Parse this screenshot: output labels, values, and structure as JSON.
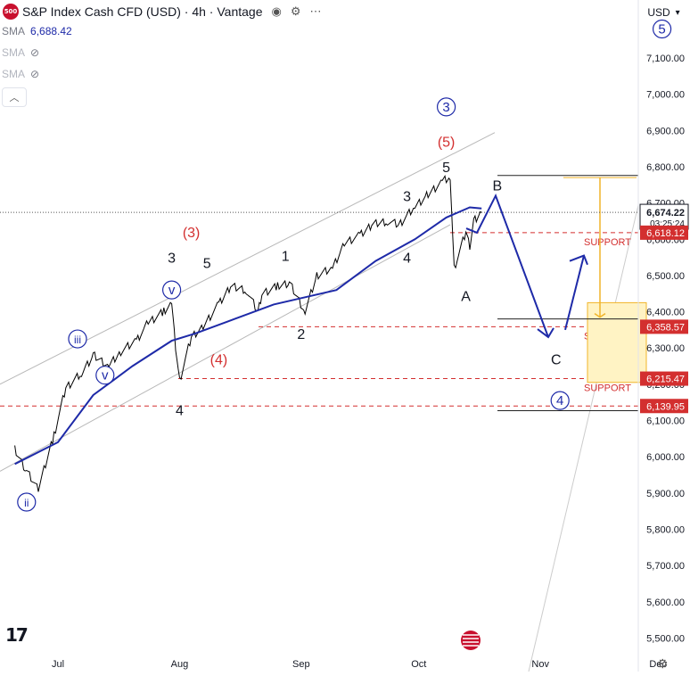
{
  "header": {
    "symbol_badge": "500",
    "title": "S&P Index Cash CFD (USD) · 4h · Vantage",
    "currency": "USD"
  },
  "indicators": [
    {
      "label": "SMA",
      "value": "6,688.42"
    },
    {
      "label": "SMA",
      "value": ""
    },
    {
      "label": "SMA",
      "value": ""
    }
  ],
  "chart_data": {
    "type": "line",
    "ylim": [
      5460,
      7240
    ],
    "y_ticks": [
      5500,
      5600,
      5700,
      5800,
      5900,
      6000,
      6100,
      6200,
      6300,
      6400,
      6500,
      6600,
      6700,
      6800,
      6900,
      7000,
      7100
    ],
    "y_tick_labels": [
      "5,500.00",
      "5,600.00",
      "5,700.00",
      "5,800.00",
      "5,900.00",
      "6,000.00",
      "6,100.00",
      "6,200.00",
      "6,300.00",
      "6,400.00",
      "6,500.00",
      "6,600.00",
      "6,700.00",
      "6,800.00",
      "6,900.00",
      "7,000.00",
      "7,100.00"
    ],
    "x_ticks": [
      "Jul",
      "Aug",
      "Sep",
      "Oct",
      "Nov",
      "Dec"
    ],
    "series": [
      {
        "color": "#000000",
        "x": [
          "2025-06-20",
          "2025-06-23",
          "2025-06-26",
          "2025-06-30",
          "2025-07-03",
          "2025-07-07",
          "2025-07-10",
          "2025-07-14",
          "2025-07-17",
          "2025-07-21",
          "2025-07-24",
          "2025-07-28",
          "2025-07-30",
          "2025-07-31",
          "2025-08-01",
          "2025-08-04",
          "2025-08-07",
          "2025-08-11",
          "2025-08-14",
          "2025-08-18",
          "2025-08-21",
          "2025-08-22",
          "2025-08-26",
          "2025-08-29",
          "2025-09-02",
          "2025-09-05",
          "2025-09-09",
          "2025-09-12",
          "2025-09-16",
          "2025-09-19",
          "2025-09-23",
          "2025-09-26",
          "2025-09-30",
          "2025-10-03",
          "2025-10-07",
          "2025-10-09",
          "2025-10-10",
          "2025-10-13",
          "2025-10-14",
          "2025-10-15",
          "2025-10-16",
          "2025-10-17"
        ],
        "y": [
          6020,
          5960,
          5910,
          6060,
          6190,
          6230,
          6280,
          6250,
          6290,
          6320,
          6370,
          6400,
          6420,
          6300,
          6210,
          6330,
          6360,
          6420,
          6470,
          6460,
          6400,
          6450,
          6470,
          6480,
          6400,
          6500,
          6520,
          6590,
          6610,
          6640,
          6650,
          6640,
          6690,
          6720,
          6760,
          6770,
          6520,
          6620,
          6580,
          6650,
          6660,
          6674
        ]
      },
      {
        "name": "SMA",
        "color": "#1e2aa8",
        "x": [
          "2025-06-20",
          "2025-07-01",
          "2025-07-10",
          "2025-07-20",
          "2025-07-30",
          "2025-08-05",
          "2025-08-15",
          "2025-08-25",
          "2025-09-02",
          "2025-09-10",
          "2025-09-20",
          "2025-09-30",
          "2025-10-08",
          "2025-10-14",
          "2025-10-17"
        ],
        "y": [
          5980,
          6040,
          6170,
          6250,
          6320,
          6340,
          6380,
          6420,
          6440,
          6460,
          6540,
          6600,
          6660,
          6688,
          6685
        ]
      }
    ],
    "price_labels": [
      {
        "value": 6674.22,
        "text": "6,674.22",
        "sub": "03:25:24",
        "type": "current"
      },
      {
        "value": 6618.12,
        "text": "6,618.12",
        "type": "level"
      },
      {
        "value": 6358.57,
        "text": "6,358.57",
        "type": "level"
      },
      {
        "value": 6215.47,
        "text": "6,215.47",
        "type": "level"
      },
      {
        "value": 6139.95,
        "text": "6,139.95",
        "type": "level"
      }
    ],
    "support_lines": [
      {
        "value": 6618.12,
        "label": "SUPPORT"
      },
      {
        "value": 6358.57,
        "label": "SUPPORT"
      },
      {
        "value": 6215.47,
        "label": "SUPPORT"
      },
      {
        "value": 6139.95,
        "label": ""
      }
    ],
    "annotations": [
      {
        "text": "5",
        "style": "circle-blue",
        "date": "2025-12-02",
        "price": 7180
      },
      {
        "text": "3",
        "style": "circle-blue",
        "date": "2025-10-08",
        "price": 6965
      },
      {
        "text": "(5)",
        "style": "red",
        "date": "2025-10-08",
        "price": 6870
      },
      {
        "text": "5",
        "style": "black",
        "date": "2025-10-08",
        "price": 6800
      },
      {
        "text": "3",
        "style": "black",
        "date": "2025-09-28",
        "price": 6720
      },
      {
        "text": "4",
        "style": "black",
        "date": "2025-09-28",
        "price": 6550
      },
      {
        "text": "1",
        "style": "black",
        "date": "2025-08-28",
        "price": 6555
      },
      {
        "text": "2",
        "style": "black",
        "date": "2025-09-01",
        "price": 6340
      },
      {
        "text": "(3)",
        "style": "red",
        "date": "2025-08-04",
        "price": 6620
      },
      {
        "text": "(4)",
        "style": "red",
        "date": "2025-08-11",
        "price": 6270
      },
      {
        "text": "3",
        "style": "black",
        "date": "2025-07-30",
        "price": 6550
      },
      {
        "text": "5",
        "style": "black",
        "date": "2025-08-08",
        "price": 6535
      },
      {
        "text": "v",
        "style": "circle-blue",
        "date": "2025-07-30",
        "price": 6460
      },
      {
        "text": "iii",
        "style": "circle-blue",
        "date": "2025-07-06",
        "price": 6325
      },
      {
        "text": "v",
        "style": "circle-blue",
        "date": "2025-07-13",
        "price": 6225
      },
      {
        "text": "ii",
        "style": "circle-blue",
        "date": "2025-06-23",
        "price": 5875
      },
      {
        "text": "4",
        "style": "black",
        "date": "2025-08-01",
        "price": 6130
      },
      {
        "text": "A",
        "style": "black",
        "date": "2025-10-13",
        "price": 6445
      },
      {
        "text": "B",
        "style": "black",
        "date": "2025-10-21",
        "price": 6750
      },
      {
        "text": "C",
        "style": "black",
        "date": "2025-11-05",
        "price": 6270
      },
      {
        "text": "4",
        "style": "circle-blue",
        "date": "2025-11-06",
        "price": 6155
      }
    ]
  }
}
